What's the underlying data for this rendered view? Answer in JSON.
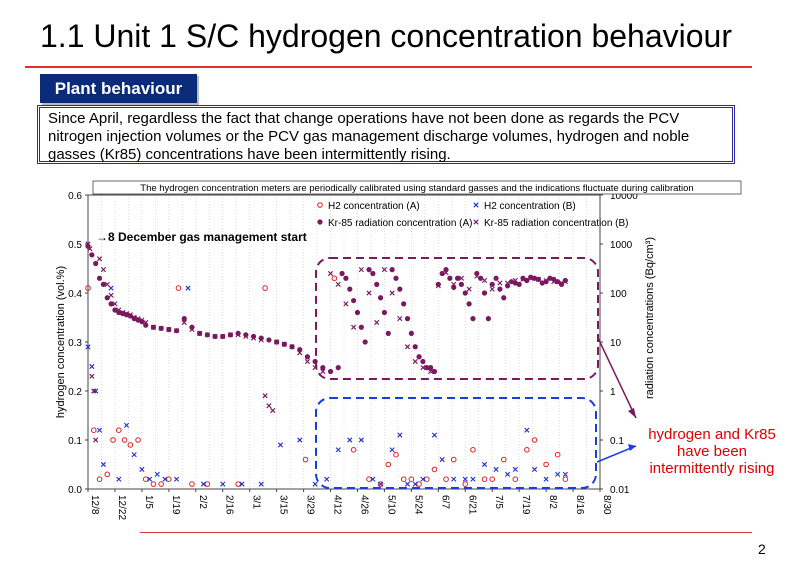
{
  "title": "1.1 Unit 1 S/C hydrogen concentration behaviour",
  "section_label": "Plant behaviour",
  "description": "Since April, regardless the fact that change operations have not been done as regards the PCV nitrogen injection volumes or the PCV gas management discharge volumes,  hydrogen and noble gasses (Kr85) concentrations have been intermittently rising.",
  "callout": "hydrogen and Kr85 have been intermittently rising",
  "page_number": "2",
  "chart_data": {
    "type": "scatter",
    "note": "The hydrogen concentration meters are periodically calibrated using standard gasses and the indications fluctuate during calibration",
    "annotation": "→8 December gas management start",
    "ylabel": "hydrogen concentration (vol.%)",
    "y2label": "radiation concentrations (Bq/cm³)",
    "ylim": [
      0,
      0.6
    ],
    "y_ticks": [
      "0.0",
      "0.1",
      "0.2",
      "0.3",
      "0.4",
      "0.5",
      "0.6"
    ],
    "y2_ticks": [
      "0.01",
      "0.1",
      "1",
      "10",
      "100",
      "1000",
      "10000"
    ],
    "x_ticks": [
      "12/8",
      "12/22",
      "1/5",
      "1/19",
      "2/2",
      "2/16",
      "3/1",
      "3/15",
      "3/29",
      "4/12",
      "4/26",
      "5/10",
      "5/24",
      "6/7",
      "6/21",
      "7/5",
      "7/19",
      "8/2",
      "8/16",
      "8/30"
    ],
    "series": [
      {
        "name": "H2 concentration (A)",
        "marker": "circle",
        "color": "#e02020",
        "axis": "left",
        "x": [
          0,
          3,
          6,
          10,
          13,
          16,
          19,
          22,
          26,
          30,
          34,
          38,
          42,
          47,
          54,
          62,
          78,
          92,
          113,
          128,
          138,
          146,
          152,
          156,
          160,
          164,
          168,
          172,
          176,
          180,
          186,
          190,
          196,
          200,
          206,
          210,
          216,
          222,
          228,
          232,
          238,
          244,
          248
        ],
        "y": [
          0.41,
          0.12,
          0.02,
          0.03,
          0.1,
          0.12,
          0.1,
          0.09,
          0.1,
          0.02,
          0.01,
          0.01,
          0.02,
          0.41,
          0.01,
          0.01,
          0.01,
          0.41,
          0.06,
          0.43,
          0.08,
          0.02,
          0.01,
          0.05,
          0.07,
          0.02,
          0.02,
          0.01,
          0.02,
          0.04,
          0.02,
          0.06,
          0.01,
          0.08,
          0.02,
          0.02,
          0.06,
          0.02,
          0.08,
          0.1,
          0.05,
          0.07,
          0.02
        ]
      },
      {
        "name": "H2 concentration (B)",
        "marker": "x",
        "color": "#2030d0",
        "axis": "left",
        "x": [
          0,
          2,
          4,
          6,
          8,
          12,
          16,
          20,
          24,
          28,
          32,
          36,
          40,
          46,
          52,
          60,
          70,
          80,
          90,
          100,
          110,
          118,
          124,
          130,
          136,
          142,
          148,
          152,
          158,
          162,
          166,
          170,
          174,
          180,
          184,
          190,
          196,
          200,
          206,
          212,
          218,
          222,
          228,
          232,
          238,
          244,
          248
        ],
        "y": [
          0.29,
          0.25,
          0.2,
          0.12,
          0.05,
          0.41,
          0.02,
          0.13,
          0.07,
          0.04,
          0.02,
          0.03,
          0.02,
          0.02,
          0.41,
          0.01,
          0.01,
          0.01,
          0.01,
          0.09,
          0.1,
          0.01,
          0.02,
          0.08,
          0.1,
          0.1,
          0.02,
          0.01,
          0.08,
          0.11,
          0.01,
          0.01,
          0.02,
          0.11,
          0.06,
          0.02,
          0.02,
          0.02,
          0.05,
          0.04,
          0.03,
          0.04,
          0.12,
          0.04,
          0.02,
          0.03,
          0.03
        ]
      },
      {
        "name": "Kr-85 radiation concentration (A)",
        "marker": "dot",
        "color": "#7a1860",
        "axis": "right",
        "x": [
          0,
          2,
          4,
          6,
          8,
          10,
          12,
          14,
          16,
          18,
          20,
          22,
          24,
          26,
          28,
          30,
          34,
          38,
          42,
          46,
          50,
          54,
          58,
          62,
          66,
          70,
          74,
          78,
          82,
          86,
          90,
          94,
          98,
          102,
          106,
          110,
          114,
          118,
          122,
          126,
          130,
          132,
          134,
          136,
          138,
          140,
          142,
          144,
          146,
          148,
          150,
          152,
          154,
          156,
          158,
          160,
          162,
          164,
          166,
          168,
          170,
          172,
          174,
          176,
          178,
          180,
          182,
          184,
          186,
          188,
          190,
          192,
          194,
          196,
          198,
          200,
          202,
          204,
          206,
          208,
          210,
          212,
          214,
          216,
          218,
          220,
          222,
          224,
          226,
          228,
          230,
          232,
          234,
          236,
          238,
          240,
          242,
          244,
          246,
          248
        ],
        "y": [
          900,
          600,
          400,
          200,
          150,
          80,
          60,
          45,
          40,
          38,
          36,
          34,
          30,
          28,
          26,
          22,
          20,
          19,
          18,
          17,
          30,
          20,
          15,
          14,
          13,
          13,
          14,
          15,
          14,
          13,
          12,
          11,
          10,
          9,
          8,
          7,
          5,
          4,
          3,
          2.5,
          3,
          250,
          200,
          120,
          70,
          40,
          20,
          10,
          300,
          250,
          150,
          80,
          40,
          15,
          300,
          200,
          120,
          60,
          30,
          15,
          8,
          5,
          4,
          3,
          3,
          2.5,
          150,
          250,
          300,
          200,
          130,
          200,
          150,
          100,
          60,
          30,
          250,
          200,
          100,
          30,
          150,
          200,
          120,
          80,
          140,
          170,
          160,
          150,
          200,
          180,
          210,
          200,
          190,
          160,
          170,
          200,
          190,
          170,
          150,
          180
        ]
      },
      {
        "name": "Kr-85 radiation concentration (B)",
        "marker": "x",
        "color": "#7a1860",
        "axis": "right",
        "x": [
          0,
          1,
          2,
          3,
          4,
          6,
          8,
          10,
          12,
          14,
          16,
          18,
          20,
          22,
          24,
          26,
          28,
          30,
          34,
          38,
          42,
          46,
          50,
          54,
          58,
          62,
          66,
          70,
          74,
          78,
          82,
          86,
          90,
          92,
          94,
          96,
          98,
          102,
          106,
          110,
          114,
          118,
          122,
          126,
          130,
          134,
          138,
          142,
          146,
          150,
          154,
          158,
          162,
          166,
          170,
          174,
          178,
          182,
          186,
          190,
          194,
          198,
          202,
          206,
          210,
          214,
          218,
          222,
          226,
          230,
          234,
          238,
          242,
          246,
          248
        ],
        "y": [
          1000,
          800,
          2,
          1,
          0.1,
          500,
          300,
          150,
          90,
          60,
          45,
          40,
          38,
          36,
          32,
          30,
          28,
          25,
          20,
          19,
          18,
          17,
          25,
          18,
          15,
          14,
          13,
          13,
          14,
          14,
          13,
          12,
          11,
          0.8,
          0.5,
          0.4,
          10,
          9,
          8,
          6,
          4,
          3,
          2.5,
          250,
          150,
          60,
          20,
          300,
          100,
          25,
          300,
          100,
          30,
          8,
          4,
          3,
          2.5,
          140,
          260,
          150,
          200,
          120,
          220,
          180,
          120,
          160,
          160,
          180,
          190,
          200,
          190,
          180,
          170,
          160,
          170
        ]
      }
    ]
  }
}
